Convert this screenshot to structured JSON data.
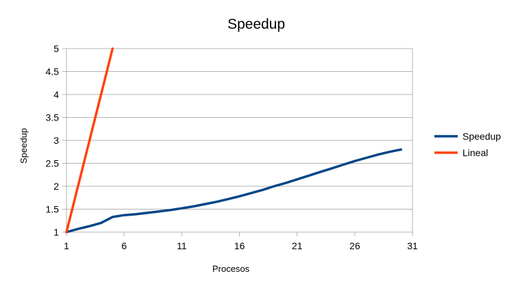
{
  "chart_data": {
    "type": "line",
    "title": "Speedup",
    "xlabel": "Procesos",
    "ylabel": "Speedup",
    "xlim": [
      1,
      31
    ],
    "ylim": [
      1,
      5
    ],
    "x_ticks": [
      "1",
      "6",
      "11",
      "16",
      "21",
      "26",
      "31"
    ],
    "y_ticks": [
      "1",
      "1.5",
      "2",
      "2.5",
      "3",
      "3.5",
      "4",
      "4.5",
      "5"
    ],
    "grid": true,
    "legend_position": "right",
    "series": [
      {
        "name": "Speedup",
        "color": "#004586",
        "x": [
          1,
          2,
          3,
          4,
          5,
          6,
          7,
          8,
          9,
          10,
          11,
          12,
          13,
          14,
          15,
          16,
          17,
          18,
          19,
          20,
          21,
          22,
          23,
          24,
          25,
          26,
          27,
          28,
          29,
          30
        ],
        "y": [
          1.0,
          1.07,
          1.13,
          1.2,
          1.33,
          1.37,
          1.39,
          1.42,
          1.45,
          1.48,
          1.52,
          1.56,
          1.61,
          1.66,
          1.72,
          1.78,
          1.85,
          1.92,
          2.0,
          2.07,
          2.15,
          2.23,
          2.31,
          2.39,
          2.47,
          2.55,
          2.62,
          2.69,
          2.75,
          2.8
        ]
      },
      {
        "name": "Lineal",
        "color": "#ff420e",
        "x": [
          1,
          5
        ],
        "y": [
          1,
          5
        ]
      }
    ]
  }
}
